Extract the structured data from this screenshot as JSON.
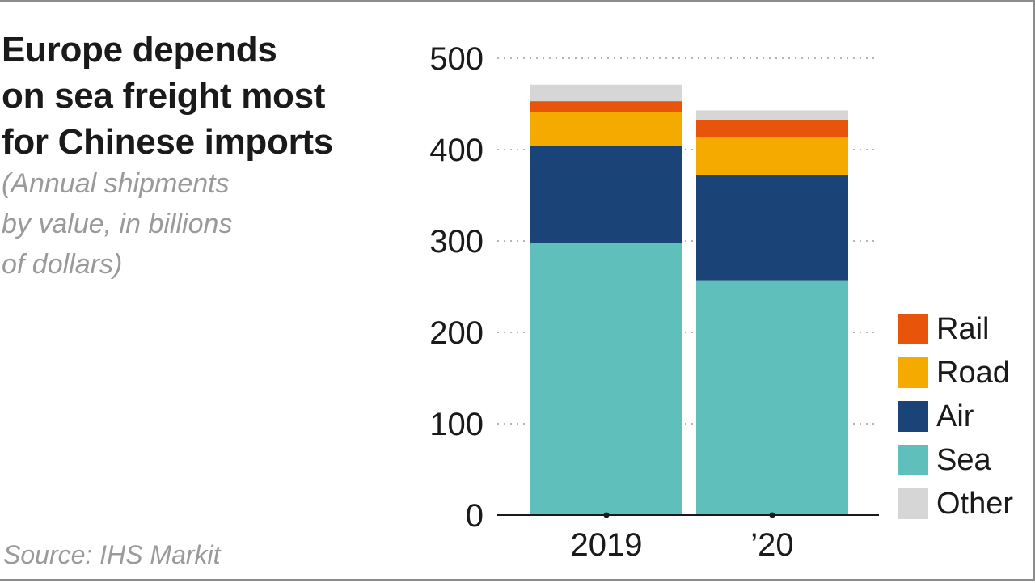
{
  "title_lines": [
    "Europe depends",
    "on sea freight most",
    "for Chinese imports"
  ],
  "subtitle_lines": [
    "(Annual shipments",
    "by value, in billions",
    "of dollars)"
  ],
  "source": "Source: IHS Markit",
  "colors": {
    "Sea": "#5fc0bb",
    "Air": "#1a4477",
    "Road": "#f5aa00",
    "Rail": "#e8550a",
    "Other": "#d6d6d6",
    "grid": "#b5b5b5",
    "axis": "#1a1a1a"
  },
  "legend": [
    {
      "key": "Rail",
      "label": "Rail"
    },
    {
      "key": "Road",
      "label": "Road"
    },
    {
      "key": "Air",
      "label": "Air"
    },
    {
      "key": "Sea",
      "label": "Sea"
    },
    {
      "key": "Other",
      "label": "Other"
    }
  ],
  "chart_data": {
    "type": "bar",
    "stacked": true,
    "title": "Europe depends on sea freight most for Chinese imports",
    "subtitle": "(Annual shipments by value, in billions of dollars)",
    "categories": [
      "2019",
      "’20"
    ],
    "series": [
      {
        "name": "Sea",
        "values": [
          298,
          257
        ]
      },
      {
        "name": "Air",
        "values": [
          106,
          115
        ]
      },
      {
        "name": "Road",
        "values": [
          37,
          41
        ]
      },
      {
        "name": "Rail",
        "values": [
          12,
          19
        ]
      },
      {
        "name": "Other",
        "values": [
          18,
          11
        ]
      }
    ],
    "ylim": [
      0,
      500
    ],
    "yticks": [
      "0",
      "100",
      "200",
      "300",
      "400",
      "500"
    ],
    "xlabel": "",
    "ylabel": "",
    "grid": true,
    "legend_position": "right"
  }
}
